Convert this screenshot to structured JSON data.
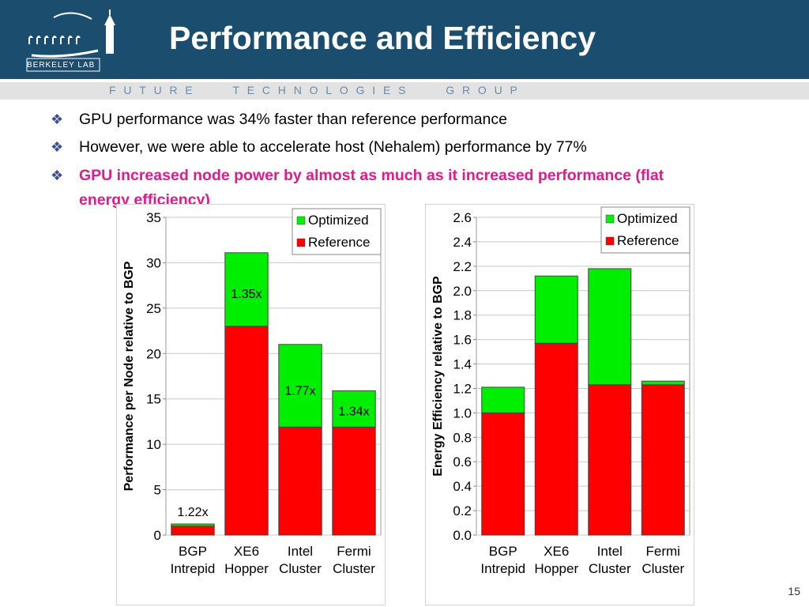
{
  "slide": {
    "title": "Performance and Efficiency",
    "group_banner": "FUTURE   TECHNOLOGIES   GROUP",
    "logo_text": "BERKELEY LAB",
    "page_number": "15",
    "bullets": [
      {
        "text": "GPU performance was 34% faster than reference performance",
        "highlight": false
      },
      {
        "text": "However, we were able to accelerate host (Nehalem) performance by 77%",
        "highlight": false
      },
      {
        "text": "GPU increased node power by almost as much as it increased performance (flat energy efficiency)",
        "highlight": true
      }
    ]
  },
  "colors": {
    "header_bg": "#1b4d6e",
    "optimized": "#00ee00",
    "reference": "#ff0000",
    "highlight_text": "#e3198c"
  },
  "chart_data": [
    {
      "type": "bar",
      "stacked": true,
      "ylabel": "Performance per Node relative to BGP",
      "ylim": [
        0,
        35
      ],
      "yticks": [
        0,
        5,
        10,
        15,
        20,
        25,
        30,
        35
      ],
      "categories": [
        "BGP Intrepid",
        "XE6 Hopper",
        "Intel Cluster",
        "Fermi Cluster"
      ],
      "category_lines": [
        [
          "BGP",
          "Intrepid"
        ],
        [
          "XE6",
          "Hopper"
        ],
        [
          "Intel",
          "Cluster"
        ],
        [
          "Fermi",
          "Cluster"
        ]
      ],
      "series": [
        {
          "name": "Reference",
          "color": "#ff0000",
          "values": [
            1.0,
            23.0,
            11.9,
            11.9
          ]
        },
        {
          "name": "Optimized",
          "color": "#00ee00",
          "values": [
            0.22,
            8.1,
            9.1,
            4.0
          ]
        }
      ],
      "annotations": [
        "1.22x",
        "1.35x",
        "1.77x",
        "1.34x"
      ],
      "legend": [
        "Optimized",
        "Reference"
      ],
      "legend_position": "top-right",
      "grid": true
    },
    {
      "type": "bar",
      "stacked": true,
      "ylabel": "Energy Efficiency relative to BGP",
      "ylim": [
        0,
        2.6
      ],
      "yticks": [
        "0.0",
        "0.2",
        "0.4",
        "0.6",
        "0.8",
        "1.0",
        "1.2",
        "1.4",
        "1.6",
        "1.8",
        "2.0",
        "2.2",
        "2.4",
        "2.6"
      ],
      "categories": [
        "BGP Intrepid",
        "XE6 Hopper",
        "Intel Cluster",
        "Fermi Cluster"
      ],
      "category_lines": [
        [
          "BGP",
          "Intrepid"
        ],
        [
          "XE6",
          "Hopper"
        ],
        [
          "Intel",
          "Cluster"
        ],
        [
          "Fermi",
          "Cluster"
        ]
      ],
      "series": [
        {
          "name": "Reference",
          "color": "#ff0000",
          "values": [
            1.0,
            1.57,
            1.23,
            1.23
          ]
        },
        {
          "name": "Optimized",
          "color": "#00ee00",
          "values": [
            0.21,
            0.55,
            0.95,
            0.03
          ]
        }
      ],
      "legend": [
        "Optimized",
        "Reference"
      ],
      "legend_position": "top-right",
      "grid": true
    }
  ]
}
